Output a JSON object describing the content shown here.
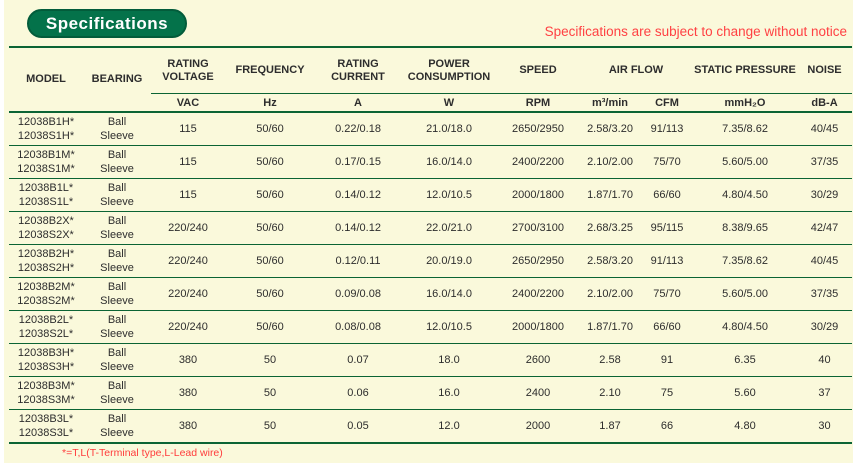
{
  "page": {
    "badge": "Specifications",
    "notice": "Specifications are subject to change without notice",
    "footnote": "*=T,L(T-Terminal type,L-Lead wire)"
  },
  "colors": {
    "background": "#FAF9DB",
    "green_line": "#0B6434",
    "badge_green": "#04724A",
    "notice_red": "#FF4143",
    "text": "#2d2d2d"
  },
  "table": {
    "header": {
      "model": "MODEL",
      "bearing": "BEARING",
      "rating_voltage": "RATING VOLTAGE",
      "frequency": "FREQUENCY",
      "rating_current": "RATING CURRENT",
      "power_consumption": "POWER CONSUMPTION",
      "speed": "SPEED",
      "air_flow": "AIR FLOW",
      "static_pressure": "STATIC PRESSURE",
      "noise": "NOISE"
    },
    "units": {
      "voltage": "VAC",
      "frequency": "Hz",
      "current": "A",
      "power": "W",
      "speed": "RPM",
      "airflow_m3min": "m³/min",
      "airflow_cfm": "CFM",
      "static_pressure": "mmH₂O",
      "noise": "dB-A"
    },
    "rows": [
      {
        "models": [
          "12038B1H*",
          "12038S1H*"
        ],
        "bearings": [
          "Ball",
          "Sleeve"
        ],
        "voltage": "115",
        "frequency": "50/60",
        "current": "0.22/0.18",
        "power": "21.0/18.0",
        "speed": "2650/2950",
        "airflow_m3min": "2.58/3.20",
        "airflow_cfm": "91/113",
        "static_pressure": "7.35/8.62",
        "noise": "40/45"
      },
      {
        "models": [
          "12038B1M*",
          "12038S1M*"
        ],
        "bearings": [
          "Ball",
          "Sleeve"
        ],
        "voltage": "115",
        "frequency": "50/60",
        "current": "0.17/0.15",
        "power": "16.0/14.0",
        "speed": "2400/2200",
        "airflow_m3min": "2.10/2.00",
        "airflow_cfm": "75/70",
        "static_pressure": "5.60/5.00",
        "noise": "37/35"
      },
      {
        "models": [
          "12038B1L*",
          "12038S1L*"
        ],
        "bearings": [
          "Ball",
          "Sleeve"
        ],
        "voltage": "115",
        "frequency": "50/60",
        "current": "0.14/0.12",
        "power": "12.0/10.5",
        "speed": "2000/1800",
        "airflow_m3min": "1.87/1.70",
        "airflow_cfm": "66/60",
        "static_pressure": "4.80/4.50",
        "noise": "30/29"
      },
      {
        "models": [
          "12038B2X*",
          "12038S2X*"
        ],
        "bearings": [
          "Ball",
          "Sleeve"
        ],
        "voltage": "220/240",
        "frequency": "50/60",
        "current": "0.14/0.12",
        "power": "22.0/21.0",
        "speed": "2700/3100",
        "airflow_m3min": "2.68/3.25",
        "airflow_cfm": "95/115",
        "static_pressure": "8.38/9.65",
        "noise": "42/47"
      },
      {
        "models": [
          "12038B2H*",
          "12038S2H*"
        ],
        "bearings": [
          "Ball",
          "Sleeve"
        ],
        "voltage": "220/240",
        "frequency": "50/60",
        "current": "0.12/0.11",
        "power": "20.0/19.0",
        "speed": "2650/2950",
        "airflow_m3min": "2.58/3.20",
        "airflow_cfm": "91/113",
        "static_pressure": "7.35/8.62",
        "noise": "40/45"
      },
      {
        "models": [
          "12038B2M*",
          "12038S2M*"
        ],
        "bearings": [
          "Ball",
          "Sleeve"
        ],
        "voltage": "220/240",
        "frequency": "50/60",
        "current": "0.09/0.08",
        "power": "16.0/14.0",
        "speed": "2400/2200",
        "airflow_m3min": "2.10/2.00",
        "airflow_cfm": "75/70",
        "static_pressure": "5.60/5.00",
        "noise": "37/35"
      },
      {
        "models": [
          "12038B2L*",
          "12038S2L*"
        ],
        "bearings": [
          "Ball",
          "Sleeve"
        ],
        "voltage": "220/240",
        "frequency": "50/60",
        "current": "0.08/0.08",
        "power": "12.0/10.5",
        "speed": "2000/1800",
        "airflow_m3min": "1.87/1.70",
        "airflow_cfm": "66/60",
        "static_pressure": "4.80/4.50",
        "noise": "30/29"
      },
      {
        "models": [
          "12038B3H*",
          "12038S3H*"
        ],
        "bearings": [
          "Ball",
          "Sleeve"
        ],
        "voltage": "380",
        "frequency": "50",
        "current": "0.07",
        "power": "18.0",
        "speed": "2600",
        "airflow_m3min": "2.58",
        "airflow_cfm": "91",
        "static_pressure": "6.35",
        "noise": "40"
      },
      {
        "models": [
          "12038B3M*",
          "12038S3M*"
        ],
        "bearings": [
          "Ball",
          "Sleeve"
        ],
        "voltage": "380",
        "frequency": "50",
        "current": "0.06",
        "power": "16.0",
        "speed": "2400",
        "airflow_m3min": "2.10",
        "airflow_cfm": "75",
        "static_pressure": "5.60",
        "noise": "37"
      },
      {
        "models": [
          "12038B3L*",
          "12038S3L*"
        ],
        "bearings": [
          "Ball",
          "Sleeve"
        ],
        "voltage": "380",
        "frequency": "50",
        "current": "0.05",
        "power": "12.0",
        "speed": "2000",
        "airflow_m3min": "1.87",
        "airflow_cfm": "66",
        "static_pressure": "4.80",
        "noise": "30"
      }
    ]
  }
}
